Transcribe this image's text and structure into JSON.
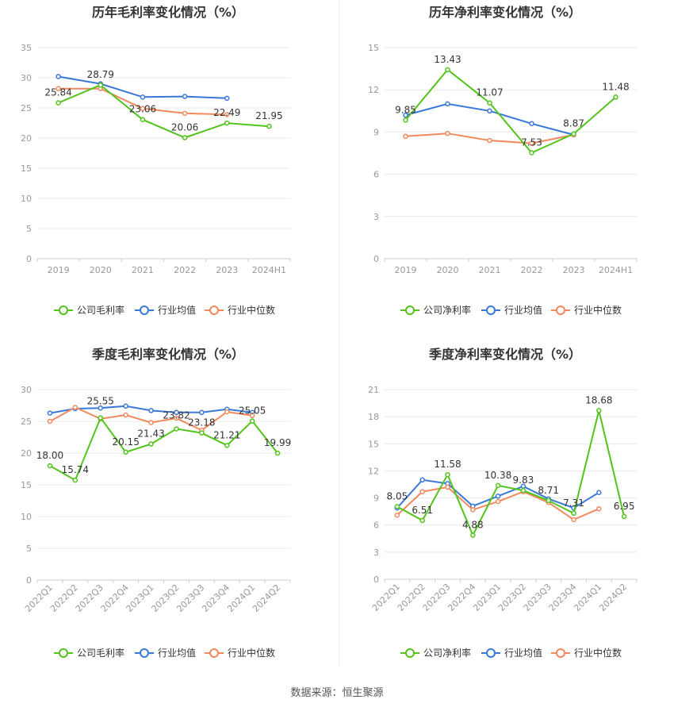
{
  "source": "数据来源：恒生聚源",
  "chart_data": [
    {
      "type": "line",
      "title": "历年毛利率变化情况（%）",
      "categories": [
        "2019",
        "2020",
        "2021",
        "2022",
        "2023",
        "2024H1"
      ],
      "ylim": [
        0,
        35
      ],
      "yticks": [
        0,
        5,
        10,
        15,
        20,
        25,
        30,
        35
      ],
      "rotate_x": false,
      "series": [
        {
          "name": "公司毛利率",
          "color": "#52c41a",
          "values": [
            25.84,
            28.79,
            23.06,
            20.06,
            22.49,
            21.95
          ],
          "labels": [
            "25.84",
            "28.79",
            "23.06",
            "20.06",
            "22.49",
            "21.95"
          ]
        },
        {
          "name": "行业均值",
          "color": "#3a78d8",
          "values": [
            30.2,
            29.0,
            26.8,
            26.9,
            26.6,
            null
          ]
        },
        {
          "name": "行业中位数",
          "color": "#f08a5d",
          "values": [
            28.2,
            28.2,
            24.9,
            24.1,
            23.9,
            null
          ]
        }
      ],
      "grid": true,
      "legend": "bottom"
    },
    {
      "type": "line",
      "title": "历年净利率变化情况（%）",
      "categories": [
        "2019",
        "2020",
        "2021",
        "2022",
        "2023",
        "2024H1"
      ],
      "ylim": [
        0,
        15
      ],
      "yticks": [
        0,
        3,
        6,
        9,
        12,
        15
      ],
      "rotate_x": false,
      "series": [
        {
          "name": "公司净利率",
          "color": "#52c41a",
          "values": [
            9.85,
            13.43,
            11.07,
            7.53,
            8.87,
            11.48
          ],
          "labels": [
            "9.85",
            "13.43",
            "11.07",
            "7.53",
            "8.87",
            "11.48"
          ]
        },
        {
          "name": "行业均值",
          "color": "#3a78d8",
          "values": [
            10.2,
            11.0,
            10.5,
            9.6,
            8.8,
            null
          ]
        },
        {
          "name": "行业中位数",
          "color": "#f08a5d",
          "values": [
            8.7,
            8.9,
            8.4,
            8.2,
            8.8,
            null
          ]
        }
      ],
      "grid": true,
      "legend": "bottom"
    },
    {
      "type": "line",
      "title": "季度毛利率变化情况（%）",
      "categories": [
        "2022Q1",
        "2022Q2",
        "2022Q3",
        "2022Q4",
        "2023Q1",
        "2023Q2",
        "2023Q3",
        "2023Q4",
        "2024Q1",
        "2024Q2"
      ],
      "ylim": [
        0,
        30
      ],
      "yticks": [
        0,
        5,
        10,
        15,
        20,
        25,
        30
      ],
      "rotate_x": true,
      "series": [
        {
          "name": "公司毛利率",
          "color": "#52c41a",
          "values": [
            18.0,
            15.74,
            25.55,
            20.15,
            21.43,
            23.82,
            23.18,
            21.21,
            25.05,
            19.99
          ],
          "labels": [
            "18.00",
            "15.74",
            "25.55",
            "20.15",
            "21.43",
            "23.82",
            "23.18",
            "21.21",
            "25.05",
            "19.99"
          ]
        },
        {
          "name": "行业均值",
          "color": "#3a78d8",
          "values": [
            26.3,
            27.0,
            27.1,
            27.4,
            26.7,
            26.4,
            26.4,
            26.9,
            26.4,
            null
          ]
        },
        {
          "name": "行业中位数",
          "color": "#f08a5d",
          "values": [
            25.0,
            27.2,
            25.4,
            26.0,
            24.8,
            25.5,
            23.6,
            26.5,
            25.9,
            null
          ]
        }
      ],
      "grid": true,
      "legend": "bottom"
    },
    {
      "type": "line",
      "title": "季度净利率变化情况（%）",
      "categories": [
        "2022Q1",
        "2022Q2",
        "2022Q3",
        "2022Q4",
        "2023Q1",
        "2023Q2",
        "2023Q3",
        "2023Q4",
        "2024Q1",
        "2024Q2"
      ],
      "ylim": [
        0,
        21
      ],
      "yticks": [
        0,
        3,
        6,
        9,
        12,
        15,
        18,
        21
      ],
      "rotate_x": true,
      "series": [
        {
          "name": "公司净利率",
          "color": "#52c41a",
          "values": [
            8.05,
            6.51,
            11.58,
            4.88,
            10.38,
            9.83,
            8.71,
            7.31,
            18.68,
            6.95
          ],
          "labels": [
            "8.05",
            "6.51",
            "11.58",
            "4.88",
            "10.38",
            "9.83",
            "8.71",
            "7.31",
            "18.68",
            "6.95"
          ]
        },
        {
          "name": "行业均值",
          "color": "#3a78d8",
          "values": [
            7.9,
            11.0,
            10.6,
            8.1,
            9.2,
            10.3,
            8.9,
            7.9,
            9.6,
            null
          ]
        },
        {
          "name": "行业中位数",
          "color": "#f08a5d",
          "values": [
            7.1,
            9.7,
            10.2,
            7.7,
            8.6,
            9.7,
            8.5,
            6.6,
            7.8,
            null
          ]
        }
      ],
      "grid": true,
      "legend": "bottom"
    }
  ]
}
